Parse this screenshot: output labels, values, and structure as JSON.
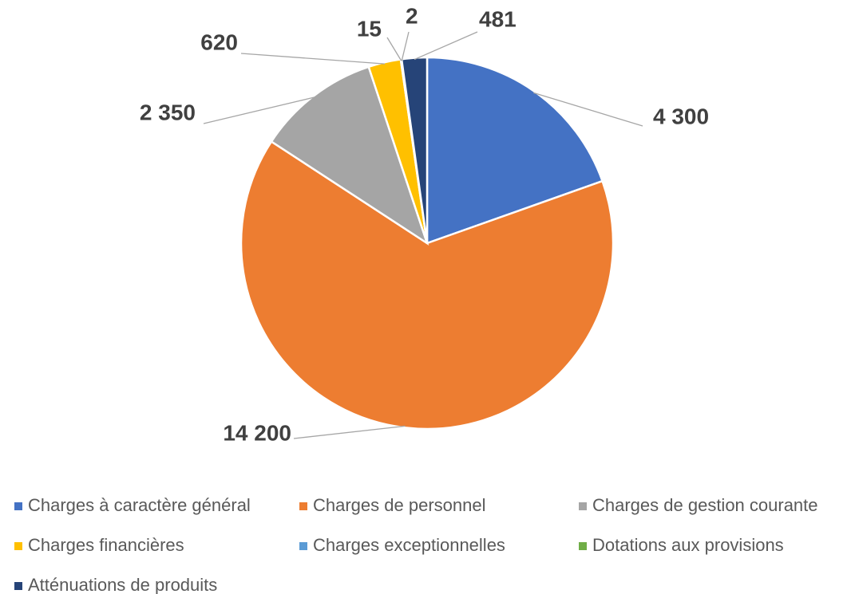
{
  "chart_data": {
    "type": "pie",
    "categories": [
      "Charges à caractère général",
      "Charges de personnel",
      "Charges de gestion courante",
      "Charges financières",
      "Charges exceptionnelles",
      "Dotations aux provisions",
      "Atténuations de produits"
    ],
    "values": [
      4300,
      14200,
      2350,
      620,
      15,
      2,
      481
    ],
    "value_labels": [
      "4 300",
      "14 200",
      "2 350",
      "620",
      "15",
      "2",
      "481"
    ],
    "colors": [
      "#4472c4",
      "#ed7d31",
      "#a5a5a5",
      "#ffc000",
      "#5b9bd5",
      "#70ad47",
      "#264478"
    ],
    "legend": "bottom"
  }
}
